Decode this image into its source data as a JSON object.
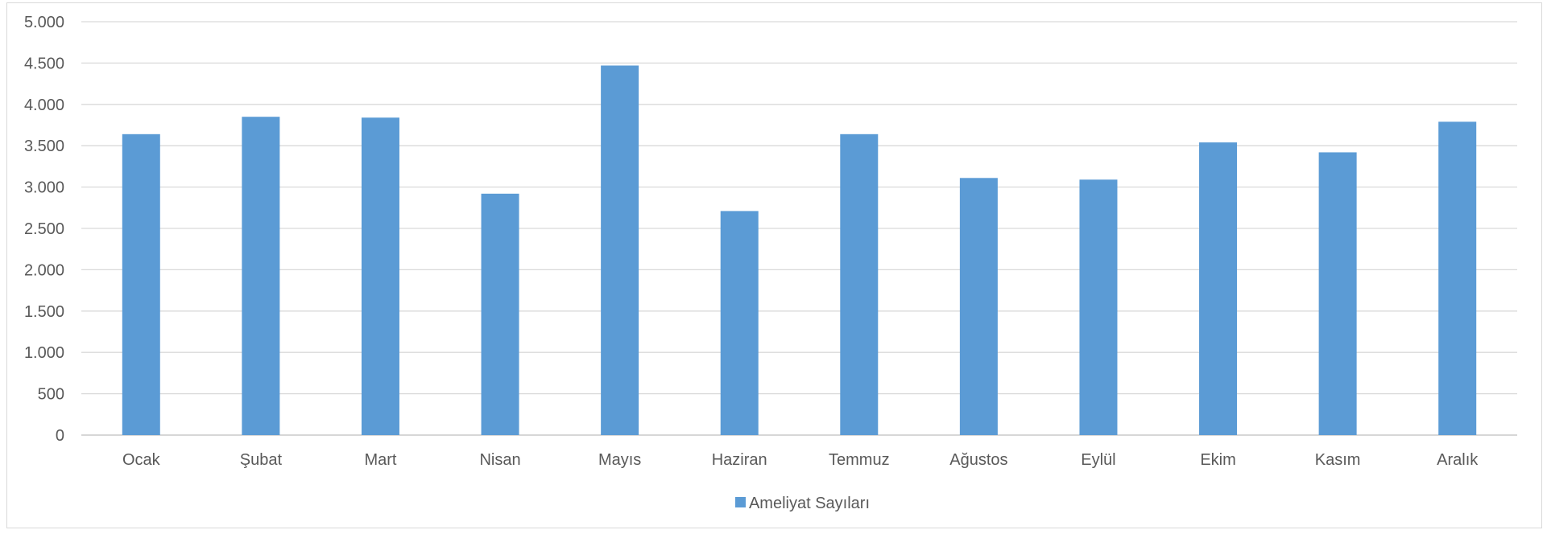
{
  "chart_data": {
    "type": "bar",
    "title": "",
    "xlabel": "",
    "ylabel": "",
    "categories": [
      "Ocak",
      "Şubat",
      "Mart",
      "Nisan",
      "Mayıs",
      "Haziran",
      "Temmuz",
      "Ağustos",
      "Eylül",
      "Ekim",
      "Kasım",
      "Aralık"
    ],
    "series": [
      {
        "name": "Ameliyat Sayıları",
        "color": "#5b9bd5",
        "values": [
          3640,
          3850,
          3840,
          2920,
          4470,
          2710,
          3640,
          3110,
          3090,
          3540,
          3420,
          3790
        ]
      }
    ],
    "ylim": [
      0,
      5000
    ],
    "yticks": [
      0,
      500,
      1000,
      1500,
      2000,
      2500,
      3000,
      3500,
      4000,
      4500,
      5000
    ],
    "ytick_labels": [
      "0",
      "500",
      "1.000",
      "1.500",
      "2.000",
      "2.500",
      "3.000",
      "3.500",
      "4.000",
      "4.500",
      "5.000"
    ],
    "grid": true,
    "legend": "bottom-center",
    "gridline_color": "#d9d9d9",
    "axis_line_color": "#bfbfbf"
  }
}
